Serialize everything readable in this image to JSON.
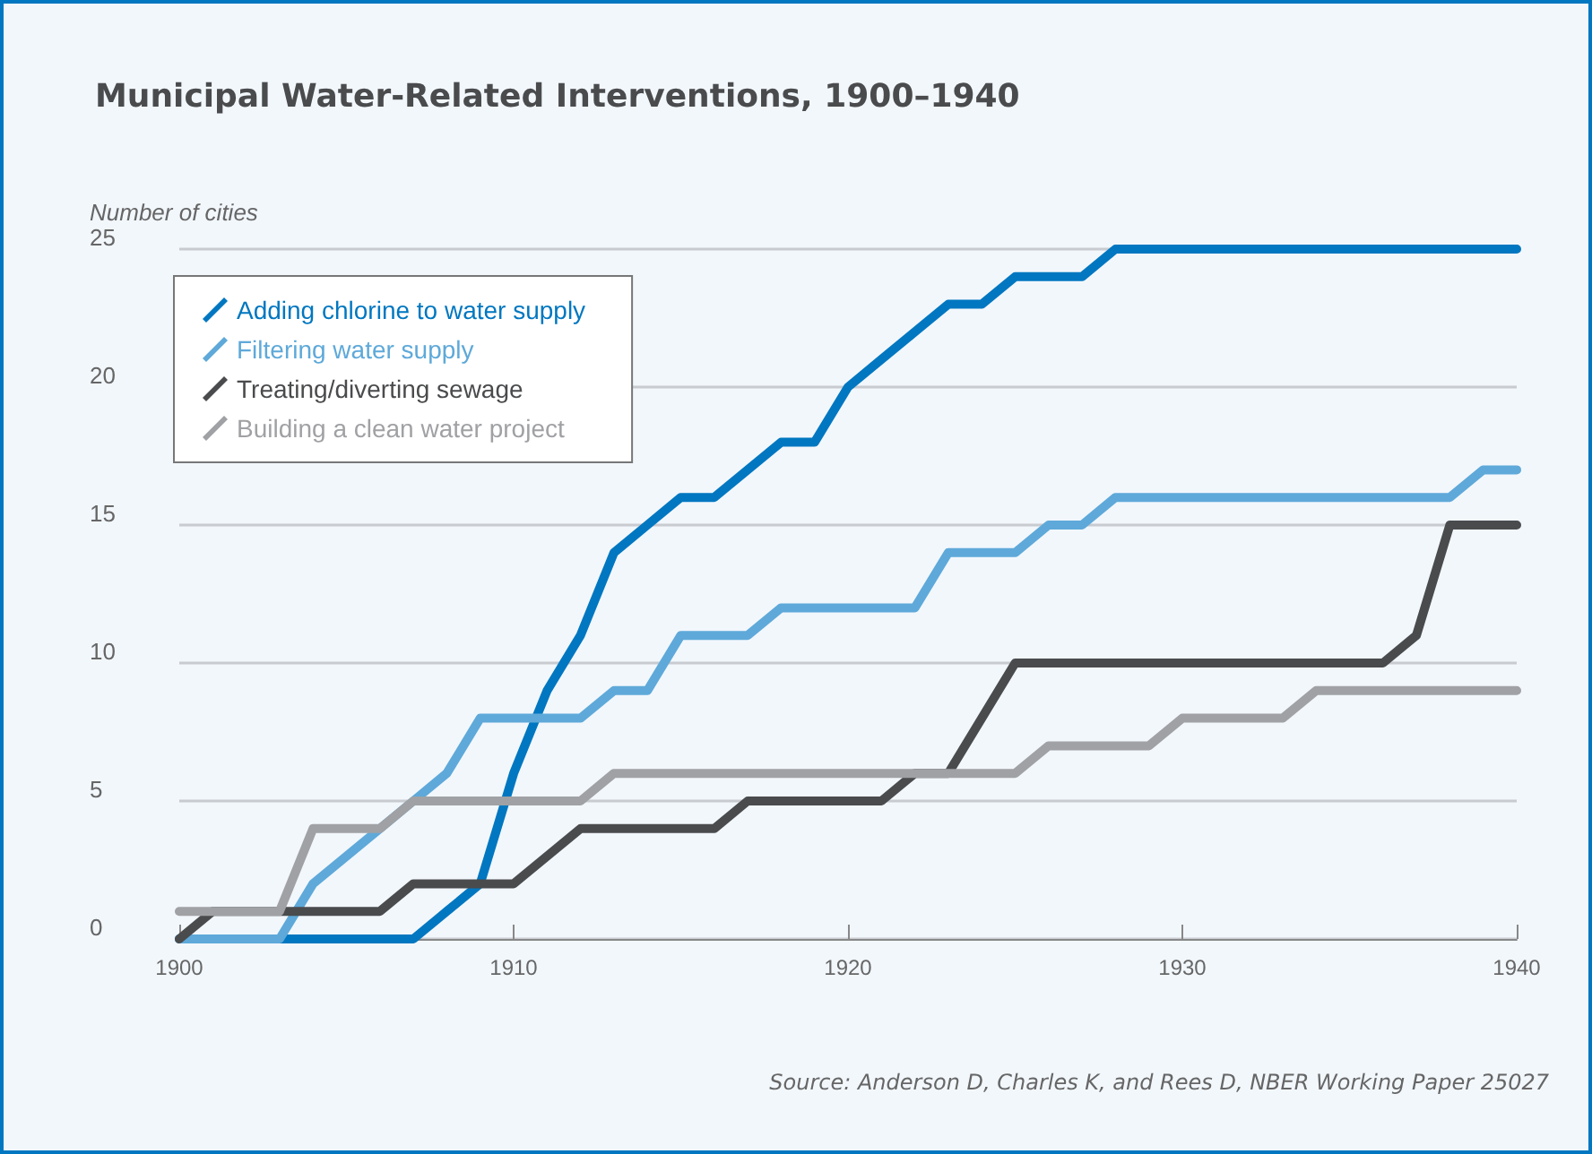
{
  "chart_data": {
    "type": "line",
    "title": "Municipal Water-Related Interventions, 1900–1940",
    "ylabel": "Number of cities",
    "x": [
      1900,
      1901,
      1902,
      1903,
      1904,
      1905,
      1906,
      1907,
      1908,
      1909,
      1910,
      1911,
      1912,
      1913,
      1914,
      1915,
      1916,
      1917,
      1918,
      1919,
      1920,
      1921,
      1922,
      1923,
      1924,
      1925,
      1926,
      1927,
      1928,
      1929,
      1930,
      1931,
      1932,
      1933,
      1934,
      1935,
      1936,
      1937,
      1938,
      1939,
      1940
    ],
    "series": [
      {
        "name": "Adding chlorine to water supply",
        "color": "#0077c0",
        "values": [
          0,
          0,
          0,
          0,
          0,
          0,
          0,
          0,
          1,
          2,
          6,
          9,
          11,
          14,
          15,
          16,
          16,
          17,
          18,
          18,
          20,
          21,
          22,
          23,
          23,
          24,
          24,
          24,
          25,
          25,
          25,
          25,
          25,
          25,
          25,
          25,
          25,
          25,
          25,
          25,
          25
        ]
      },
      {
        "name": "Filtering water supply",
        "color": "#5ea9d9",
        "values": [
          0,
          0,
          0,
          0,
          2,
          3,
          4,
          5,
          6,
          8,
          8,
          8,
          8,
          9,
          9,
          11,
          11,
          11,
          12,
          12,
          12,
          12,
          12,
          14,
          14,
          14,
          15,
          15,
          16,
          16,
          16,
          16,
          16,
          16,
          16,
          16,
          16,
          16,
          16,
          17,
          17
        ]
      },
      {
        "name": "Treating/diverting sewage",
        "color": "#4a4b4d",
        "values": [
          0,
          1,
          1,
          1,
          1,
          1,
          1,
          2,
          2,
          2,
          2,
          3,
          4,
          4,
          4,
          4,
          4,
          5,
          5,
          5,
          5,
          5,
          6,
          6,
          8,
          10,
          10,
          10,
          10,
          10,
          10,
          10,
          10,
          10,
          10,
          10,
          10,
          11,
          15,
          15,
          15
        ]
      },
      {
        "name": "Building a clean water project",
        "color": "#a0a1a4",
        "values": [
          1,
          1,
          1,
          1,
          4,
          4,
          4,
          5,
          5,
          5,
          5,
          5,
          5,
          6,
          6,
          6,
          6,
          6,
          6,
          6,
          6,
          6,
          6,
          6,
          6,
          6,
          7,
          7,
          7,
          7,
          8,
          8,
          8,
          8,
          9,
          9,
          9,
          9,
          9,
          9,
          9
        ]
      }
    ],
    "xlim": [
      1900,
      1940
    ],
    "xticks": [
      1900,
      1910,
      1920,
      1930,
      1940
    ],
    "ylim": [
      0,
      25
    ],
    "yticks": [
      0,
      5,
      10,
      15,
      20,
      25
    ],
    "grid": "y",
    "legend": "top left",
    "marker": "none",
    "line_style": "solid",
    "annotations": [
      "Source: Anderson D, Charles K, and Rees D, NBER Working Paper 25027"
    ]
  }
}
